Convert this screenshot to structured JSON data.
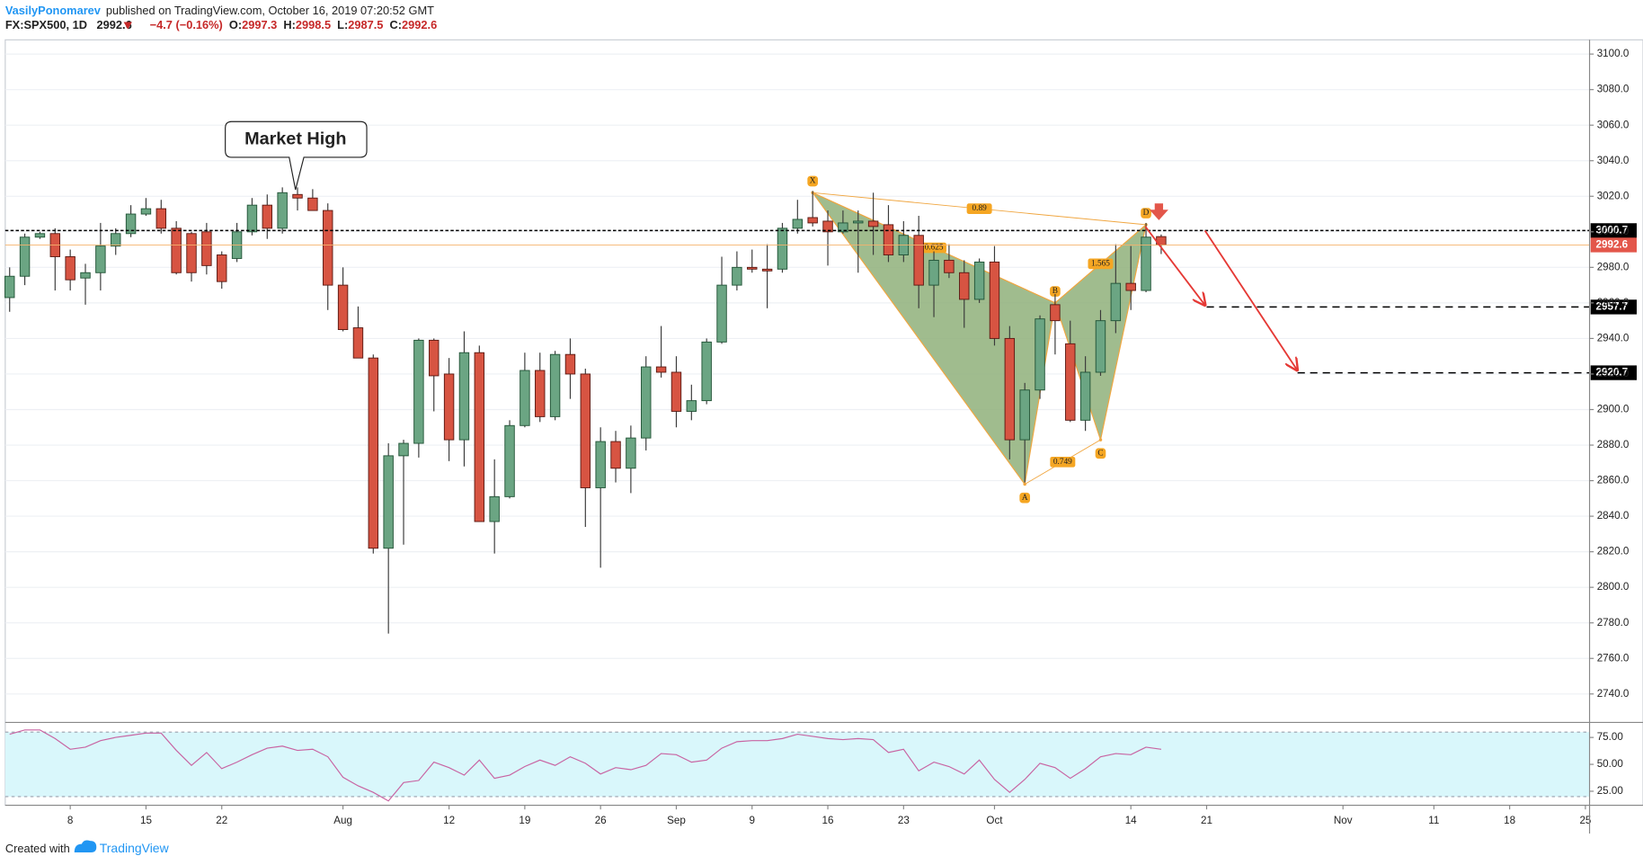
{
  "header": {
    "author": "VasilyPonomarev",
    "published": "published on TradingView.com, October 16, 2019 07:20:52 GMT",
    "symbol": "FX:SPX500, 1D",
    "last": 2992.6,
    "change": "−4.7 (−0.16%)",
    "ohlc_labels": [
      "O:",
      "H:",
      "L:",
      "C:"
    ],
    "ohlc": [
      2997.3,
      2998.5,
      2987.5,
      2992.6
    ]
  },
  "footer": {
    "created": "Created with",
    "brand": "TradingView"
  },
  "chart_data": {
    "type": "candlestick",
    "categories": [
      null,
      null,
      null,
      null,
      "8",
      null,
      null,
      null,
      null,
      "15",
      null,
      null,
      null,
      null,
      "22",
      null,
      null,
      null,
      null,
      null,
      null,
      null,
      "Aug",
      null,
      null,
      null,
      null,
      null,
      null,
      "12",
      null,
      null,
      null,
      null,
      "19",
      null,
      null,
      null,
      null,
      "26",
      null,
      null,
      null,
      null,
      "Sep",
      null,
      null,
      null,
      null,
      "9",
      null,
      null,
      null,
      null,
      "16",
      null,
      null,
      null,
      null,
      "23",
      null,
      null,
      null,
      null,
      null,
      "Oct",
      null,
      null,
      null,
      null,
      null,
      null,
      null,
      null,
      "14",
      null,
      null,
      null,
      null,
      "21",
      null,
      null,
      null,
      null,
      null,
      null,
      null,
      null,
      "Nov",
      null,
      null,
      null,
      null,
      null,
      "11",
      null,
      null,
      null,
      null,
      "18",
      null,
      null,
      null,
      null,
      "25"
    ],
    "open": [
      2963,
      2975,
      2997,
      2999,
      2986,
      2974,
      2977,
      2992,
      2999,
      3010,
      3013,
      3002,
      2999,
      3000,
      2987,
      2985,
      3000,
      3015,
      3002,
      3021,
      3019,
      3012,
      2970,
      2946,
      2929,
      2822,
      2874,
      2881,
      2939,
      2920,
      2883,
      2932,
      2837,
      2851,
      2891,
      2922,
      2896,
      2931,
      2920,
      2856,
      2882,
      2867,
      2884,
      2924,
      2921,
      2899,
      2905,
      2938,
      2970,
      2980,
      2979,
      2979,
      3002,
      3008,
      3006,
      3000,
      3005,
      3006,
      3004,
      2987,
      2998,
      2970,
      2984,
      2977,
      2962,
      2983,
      2940,
      2883,
      2911,
      2959,
      2937,
      2894,
      2921,
      2950,
      2971,
      2967,
      2997.3,
      null,
      null,
      null,
      null,
      null,
      null,
      null,
      null,
      null,
      null,
      null,
      null,
      null,
      null,
      null,
      null,
      null,
      null,
      null,
      null,
      null,
      null,
      null,
      null,
      null,
      null,
      null,
      null
    ],
    "high": [
      2980,
      2999,
      3000,
      3002,
      2990,
      2982,
      3005,
      3002,
      3015,
      3019,
      3018,
      3006,
      3000,
      3005,
      2989,
      3005,
      3019,
      3021,
      3025,
      3025,
      3024,
      3016,
      2980,
      2958,
      2931,
      2881,
      2883,
      2940,
      2940,
      2929,
      2944,
      2936,
      2872,
      2894,
      2932,
      2932,
      2933,
      2940,
      2923,
      2890,
      2888,
      2891,
      2930,
      2947,
      2930,
      2914,
      2940,
      2986,
      2989,
      2990,
      2993,
      3005,
      3018,
      3023,
      3012,
      3012,
      3012,
      3022,
      3015,
      3006,
      3009,
      2989,
      2993,
      2984,
      2985,
      2992,
      2947,
      2915,
      2953,
      2965,
      2950,
      2930,
      2956,
      2993,
      2992,
      3005,
      2998.5,
      null,
      null,
      null,
      null,
      null,
      null,
      null,
      null,
      null,
      null,
      null,
      null,
      null,
      null,
      null,
      null,
      null,
      null,
      null,
      null,
      null,
      null,
      null,
      null,
      null,
      null,
      null,
      null
    ],
    "low": [
      2955,
      2970,
      2996,
      2967,
      2967,
      2959,
      2967,
      2987,
      2997,
      3009,
      2999,
      2976,
      2972,
      2976,
      2968,
      2983,
      2998,
      2996,
      2999,
      3012,
      3012,
      2956,
      2944,
      2929,
      2819,
      2774,
      2824,
      2873,
      2899,
      2871,
      2868,
      2837,
      2819,
      2850,
      2890,
      2893,
      2894,
      2906,
      2834,
      2811,
      2859,
      2853,
      2877,
      2918,
      2890,
      2894,
      2903,
      2937,
      2967,
      2977,
      2957,
      2977,
      2999,
      3003,
      2981,
      2999,
      2977,
      2987,
      2983,
      2983,
      2957,
      2952,
      2974,
      2946,
      2960,
      2936,
      2872,
      2859,
      2906,
      2931,
      2893,
      2888,
      2919,
      2943,
      2956,
      2966,
      2987.5,
      null,
      null,
      null,
      null,
      null,
      null,
      null,
      null,
      null,
      null,
      null,
      null,
      null,
      null,
      null,
      null,
      null,
      null,
      null,
      null,
      null,
      null,
      null,
      null,
      null,
      null,
      null,
      null
    ],
    "close": [
      2975,
      2997,
      2999,
      2986,
      2973,
      2977,
      2992,
      2999,
      3010,
      3013,
      3002,
      2977,
      2977,
      2981,
      2972,
      3000,
      3015,
      3002,
      3022,
      3019,
      3012,
      2970,
      2945,
      2929,
      2822,
      2874,
      2881,
      2939,
      2919,
      2883,
      2932,
      2837,
      2851,
      2891,
      2922,
      2896,
      2931,
      2920,
      2856,
      2882,
      2867,
      2884,
      2924,
      2921,
      2899,
      2905,
      2938,
      2970,
      2980,
      2979,
      2978,
      3002,
      3007,
      3005,
      3000,
      3005,
      3006,
      3003,
      2987,
      2998,
      2970,
      2984,
      2977,
      2962,
      2983,
      2940,
      2883,
      2911,
      2951,
      2950,
      2894,
      2921,
      2950,
      2971,
      2967,
      2997,
      2992.6,
      null,
      null,
      null,
      null,
      null,
      null,
      null,
      null,
      null,
      null,
      null,
      null,
      null,
      null,
      null,
      null,
      null,
      null,
      null,
      null,
      null,
      null,
      null,
      null,
      null,
      null,
      null,
      null
    ],
    "colors": {
      "up": "#6ba583",
      "down": "#d75442",
      "up_border": "#225437",
      "down_border": "#5b1a13",
      "wick": "#3a3a3a"
    },
    "ylim": [
      2724,
      3108
    ],
    "yticks": [
      {
        "value": 2740,
        "label": "2740.0"
      },
      {
        "value": 2760,
        "label": "2760.0"
      },
      {
        "value": 2780,
        "label": "2780.0"
      },
      {
        "value": 2800,
        "label": "2800.0"
      },
      {
        "value": 2820,
        "label": "2820.0"
      },
      {
        "value": 2840,
        "label": "2840.0"
      },
      {
        "value": 2860,
        "label": "2860.0"
      },
      {
        "value": 2880,
        "label": "2880.0"
      },
      {
        "value": 2900,
        "label": "2900.0"
      },
      {
        "value": 2920,
        "label": "2920.0"
      },
      {
        "value": 2940,
        "label": "2940.0"
      },
      {
        "value": 2960,
        "label": "2960.0"
      },
      {
        "value": 2980,
        "label": "2980.0"
      },
      {
        "value": 3000,
        "label": "3000.0"
      },
      {
        "value": 3020,
        "label": "3020.0"
      },
      {
        "value": 3040,
        "label": "3040.0"
      },
      {
        "value": 3060,
        "label": "3060.0"
      },
      {
        "value": 3080,
        "label": "3080.0"
      },
      {
        "value": 3100,
        "label": "3100.0"
      }
    ],
    "grid": true,
    "levels": [
      {
        "value": 3000.7,
        "color": "#000000",
        "style": "dotted"
      },
      {
        "value": 2992.6,
        "color": "#e3564a",
        "style": "solid"
      },
      {
        "value": 2957.7,
        "color": "#000000",
        "style": "dashed"
      },
      {
        "value": 2920.7,
        "color": "#000000",
        "style": "dashed"
      }
    ],
    "annotation": "Market High",
    "pattern": {
      "color": "#8fb07a",
      "line_color": "#f0a640",
      "points": [
        {
          "label": "X",
          "index": 53,
          "price": 3022
        },
        {
          "label": "A",
          "index": 67,
          "price": 2858
        },
        {
          "label": "B",
          "index": 69,
          "price": 2960
        },
        {
          "label": "C",
          "index": 72,
          "price": 2883
        },
        {
          "label": "D",
          "index": 75,
          "price": 3004
        }
      ],
      "ratios": [
        0.89,
        0.625,
        1.565,
        0.749
      ]
    },
    "rsi": {
      "color": "#c864a2",
      "band_color": "#d9f7fb",
      "values": [
        78,
        82,
        82,
        74,
        64,
        66,
        72,
        75,
        77,
        79,
        79,
        63,
        49,
        61,
        46,
        52,
        59,
        65,
        67,
        63,
        64,
        57,
        38,
        30,
        24,
        16,
        33,
        35,
        52,
        47,
        40,
        54,
        37,
        40,
        48,
        54,
        49,
        57,
        51,
        41,
        47,
        45,
        49,
        60,
        59,
        52,
        54,
        65,
        71,
        72,
        72,
        74,
        78,
        76,
        74,
        73,
        74,
        73,
        61,
        64,
        44,
        52,
        48,
        41,
        54,
        36,
        24,
        36,
        51,
        47,
        37,
        46,
        57,
        60,
        59,
        66,
        64,
        null,
        null,
        null,
        null,
        null,
        null,
        null,
        null,
        null,
        null,
        null,
        null,
        null,
        null,
        null,
        null,
        null,
        null,
        null,
        null,
        null,
        null,
        null,
        null,
        null,
        null,
        null,
        null
      ],
      "ylim": [
        12,
        88
      ],
      "yticks": [
        {
          "value": 25,
          "label": "25.00"
        },
        {
          "value": 50,
          "label": "50.00"
        },
        {
          "value": 75,
          "label": "75.00"
        }
      ],
      "bands": [
        80,
        20
      ]
    }
  }
}
